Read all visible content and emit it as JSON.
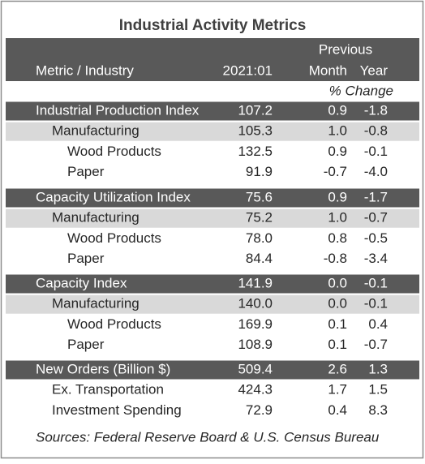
{
  "title": "Industrial Activity Metrics",
  "header": {
    "previous": "Previous",
    "metric": "Metric / Industry",
    "period": "2021:01",
    "month": "Month",
    "year": "Year",
    "change": "% Change"
  },
  "sections": [
    {
      "rows": [
        {
          "label": "Industrial Production Index",
          "values": [
            "107.2",
            "0.9",
            "-1.8"
          ]
        },
        {
          "label": "Manufacturing",
          "values": [
            "105.3",
            "1.0",
            "-0.8"
          ]
        },
        {
          "label": "Wood Products",
          "values": [
            "132.5",
            "0.9",
            "-0.1"
          ]
        },
        {
          "label": "Paper",
          "values": [
            "91.9",
            "-0.7",
            "-4.0"
          ]
        }
      ]
    },
    {
      "rows": [
        {
          "label": "Capacity Utilization Index",
          "values": [
            "75.6",
            "0.9",
            "-1.7"
          ]
        },
        {
          "label": "Manufacturing",
          "values": [
            "75.2",
            "1.0",
            "-0.7"
          ]
        },
        {
          "label": "Wood Products",
          "values": [
            "78.0",
            "0.8",
            "-0.5"
          ]
        },
        {
          "label": "Paper",
          "values": [
            "84.4",
            "-0.8",
            "-3.4"
          ]
        }
      ]
    },
    {
      "rows": [
        {
          "label": "Capacity Index",
          "values": [
            "141.9",
            "0.0",
            "-0.1"
          ]
        },
        {
          "label": "Manufacturing",
          "values": [
            "140.0",
            "0.0",
            "-0.1"
          ]
        },
        {
          "label": "Wood Products",
          "values": [
            "169.9",
            "0.1",
            "0.4"
          ]
        },
        {
          "label": "Paper",
          "values": [
            "108.9",
            "0.1",
            "-0.7"
          ]
        }
      ]
    },
    {
      "rows": [
        {
          "label": "New Orders (Billion $)",
          "values": [
            "509.4",
            "2.6",
            "1.3"
          ]
        },
        {
          "label": "Ex. Transportation",
          "values": [
            "424.3",
            "1.7",
            "1.5"
          ]
        },
        {
          "label": "Investment Spending",
          "values": [
            "72.9",
            "0.4",
            "8.3"
          ]
        }
      ]
    }
  ],
  "source": "Sources: Federal Reserve Board & U.S. Census Bureau"
}
